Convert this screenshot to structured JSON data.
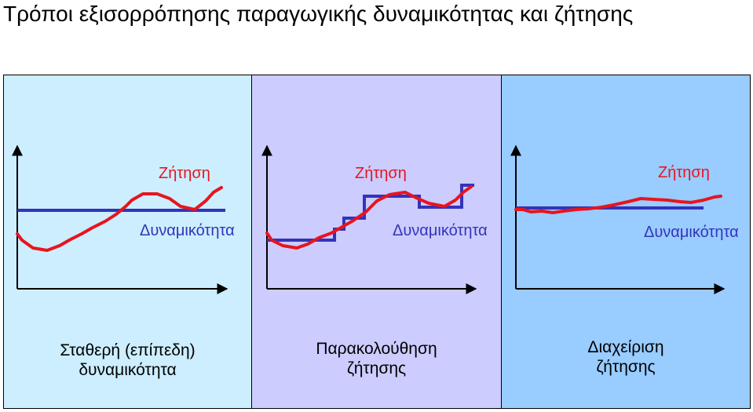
{
  "title": "Τρόποι εξισορρόπησης παραγωγικής δυναμικότητας και ζήτησης",
  "colors": {
    "panel1": "#cceeff",
    "panel2": "#ccccff",
    "panel3": "#99ccff",
    "demand": "#e8141e",
    "capacity": "#3333bb"
  },
  "panels": [
    {
      "demand_label": "Ζήτηση",
      "capacity_label": "Δυναμικότητα",
      "caption_line1": "Σταθερή (επίπεδη)",
      "caption_line2": "δυναμικότητα"
    },
    {
      "demand_label": "Ζήτηση",
      "capacity_label": "Δυναμικότητα",
      "caption_line1": "Παρακολούθηση",
      "caption_line2": "ζήτησης"
    },
    {
      "demand_label": "Ζήτηση",
      "capacity_label": "Δυναμικότητα",
      "caption_line1": "Διαχείριση",
      "caption_line2": "ζήτησης"
    }
  ]
}
